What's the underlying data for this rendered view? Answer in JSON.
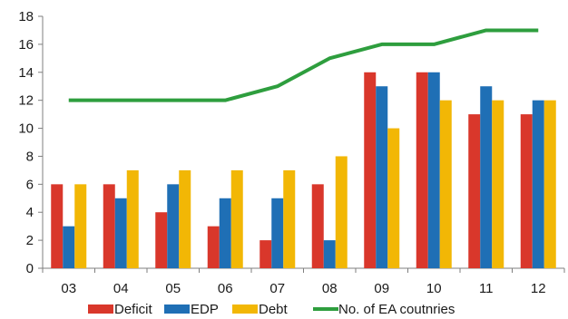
{
  "chart_data": {
    "type": "bar",
    "categories": [
      "03",
      "04",
      "05",
      "06",
      "07",
      "08",
      "09",
      "10",
      "11",
      "12"
    ],
    "series": [
      {
        "name": "Deficit",
        "kind": "bar",
        "color": "#d9372b",
        "values": [
          6,
          6,
          4,
          3,
          2,
          6,
          14,
          14,
          11,
          11
        ]
      },
      {
        "name": "EDP",
        "kind": "bar",
        "color": "#1f6fb5",
        "values": [
          3,
          5,
          6,
          5,
          5,
          2,
          13,
          14,
          13,
          12
        ]
      },
      {
        "name": "Debt",
        "kind": "bar",
        "color": "#f2b705",
        "values": [
          6,
          7,
          7,
          7,
          7,
          8,
          10,
          12,
          12,
          12
        ]
      },
      {
        "name": "No. of EA coutnries",
        "kind": "line",
        "color": "#2e9e3e",
        "values": [
          12,
          12,
          12,
          12,
          13,
          15,
          16,
          16,
          17,
          17
        ]
      }
    ],
    "ylim": [
      0,
      18
    ],
    "yticks": [
      0,
      2,
      4,
      6,
      8,
      10,
      12,
      14,
      16,
      18
    ],
    "grid": false,
    "legend_position": "bottom",
    "title": "",
    "xlabel": "",
    "ylabel": ""
  }
}
